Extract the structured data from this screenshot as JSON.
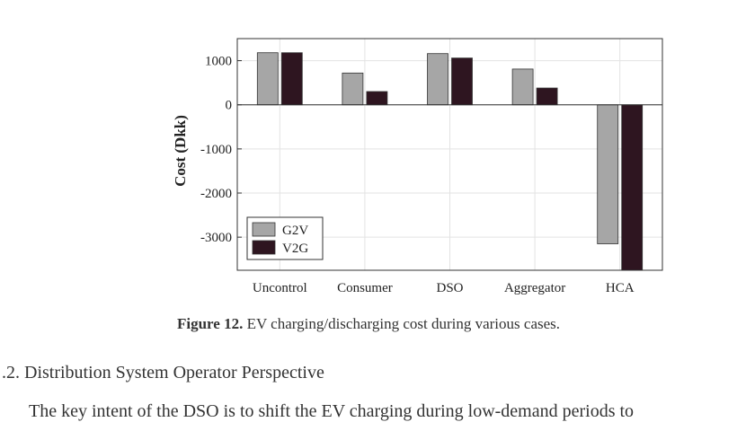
{
  "chart_data": {
    "type": "bar",
    "categories": [
      "Uncontrol",
      "Consumer",
      "DSO",
      "Aggregator",
      "HCA"
    ],
    "series": [
      {
        "name": "G2V",
        "values": [
          1180,
          720,
          1160,
          810,
          -3150
        ]
      },
      {
        "name": "V2G",
        "values": [
          1180,
          300,
          1060,
          380,
          -3750
        ]
      }
    ],
    "ylabel": "Cost (Dkk)",
    "xlabel": "",
    "ylim": [
      -3750,
      1500
    ],
    "yticks": [
      1000,
      0,
      -1000,
      -2000,
      -3000
    ],
    "ytick_labels": [
      "1000",
      "0",
      "-1000",
      "-2000",
      "-3000"
    ],
    "grid": true,
    "legend_position": "bottom-left",
    "colors": {
      "G2V": "#a6a6a6",
      "V2G": "#2e1520"
    }
  },
  "caption": {
    "label": "Figure 12.",
    "text": " EV charging/discharging cost during various cases."
  },
  "section_heading": ".2. Distribution System Operator Perspective",
  "paragraph_start": "The key intent of the DSO is to shift the EV charging during low-demand periods to"
}
